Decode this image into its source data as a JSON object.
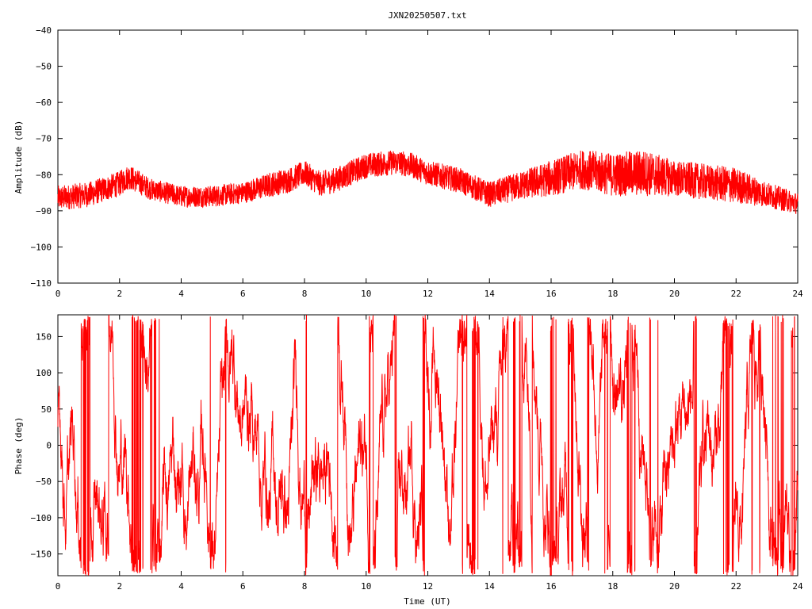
{
  "chart_data": [
    {
      "type": "line",
      "title": "JXN20250507.txt",
      "xlabel": "",
      "ylabel": "Amplitude (dB)",
      "xlim": [
        0,
        24
      ],
      "ylim": [
        -110,
        -40
      ],
      "x_ticks": [
        "0",
        "2",
        "4",
        "6",
        "8",
        "10",
        "12",
        "14",
        "16",
        "18",
        "20",
        "22",
        "24"
      ],
      "y_ticks": [
        "-40",
        "-50",
        "-60",
        "-70",
        "-80",
        "-90",
        "-100",
        "-110"
      ],
      "grid": false,
      "color": "#ff0000",
      "series": [
        {
          "envelope_x": [
            0,
            1,
            2,
            2.3,
            3,
            4,
            5,
            6,
            7,
            7.5,
            8,
            8.5,
            9,
            10,
            11,
            11.5,
            12,
            13,
            14,
            15,
            16,
            17,
            18,
            19,
            20,
            21,
            22,
            23,
            24
          ],
          "upper": [
            -83,
            -82,
            -79,
            -77,
            -81,
            -83,
            -83,
            -82,
            -79,
            -78,
            -76,
            -79,
            -78,
            -74,
            -73,
            -74,
            -76,
            -78,
            -82,
            -79,
            -76,
            -73,
            -74,
            -73,
            -76,
            -77,
            -78,
            -82,
            -85
          ],
          "lower": [
            -90,
            -89,
            -86,
            -84,
            -87,
            -89,
            -89,
            -88,
            -86,
            -85,
            -83,
            -86,
            -85,
            -81,
            -80,
            -81,
            -83,
            -85,
            -89,
            -87,
            -86,
            -84,
            -86,
            -86,
            -86,
            -87,
            -88,
            -89,
            -91
          ]
        }
      ]
    },
    {
      "type": "line",
      "title": "",
      "xlabel": "Time (UT)",
      "ylabel": "Phase (deg)",
      "xlim": [
        0,
        24
      ],
      "ylim": [
        -180,
        180
      ],
      "x_ticks": [
        "0",
        "2",
        "4",
        "6",
        "8",
        "10",
        "12",
        "14",
        "16",
        "18",
        "20",
        "22",
        "24"
      ],
      "y_ticks": [
        "150",
        "100",
        "50",
        "0",
        "-50",
        "-100",
        "-150"
      ],
      "grid": false,
      "color": "#ff0000",
      "series": [
        {
          "description_free": true,
          "wrapped_range": [
            -180,
            180
          ]
        }
      ]
    }
  ]
}
